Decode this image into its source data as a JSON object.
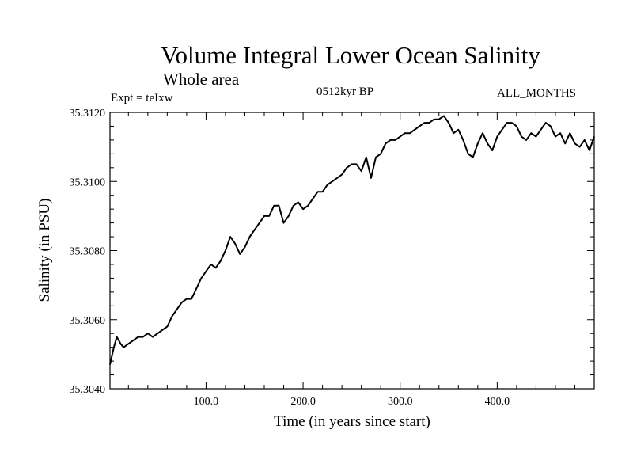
{
  "header": {
    "title": "Volume Integral Lower Ocean Salinity",
    "subtitle": "Whole area",
    "experiment": "Expt = teIxw",
    "period": "0512kyr BP",
    "months": "ALL_MONTHS"
  },
  "chart_data": {
    "type": "line",
    "title": "Volume Integral Lower Ocean Salinity",
    "xlabel": "Time (in years since start)",
    "ylabel": "Salinity (in PSU)",
    "xlim": [
      1,
      500
    ],
    "ylim": [
      35.304,
      35.312
    ],
    "x_ticks": [
      100,
      200,
      300,
      400
    ],
    "x_tick_labels": [
      "100.0",
      "200.0",
      "300.0",
      "400.0"
    ],
    "y_ticks": [
      35.304,
      35.306,
      35.308,
      35.31,
      35.312
    ],
    "y_tick_labels": [
      "35.3040",
      "35.3060",
      "35.3080",
      "35.3100",
      "35.3120"
    ],
    "grid": false,
    "series": [
      {
        "x": [
          1,
          5,
          8,
          12,
          15,
          20,
          25,
          30,
          35,
          40,
          45,
          50,
          55,
          60,
          65,
          70,
          75,
          80,
          85,
          90,
          95,
          100,
          105,
          110,
          115,
          120,
          125,
          130,
          135,
          140,
          145,
          150,
          155,
          160,
          165,
          170,
          175,
          180,
          185,
          190,
          195,
          200,
          205,
          210,
          215,
          220,
          225,
          230,
          235,
          240,
          245,
          250,
          255,
          260,
          265,
          270,
          275,
          280,
          285,
          290,
          295,
          300,
          305,
          310,
          315,
          320,
          325,
          330,
          335,
          340,
          345,
          350,
          355,
          360,
          365,
          370,
          375,
          380,
          385,
          390,
          395,
          400,
          405,
          410,
          415,
          420,
          425,
          430,
          435,
          440,
          445,
          450,
          455,
          460,
          465,
          470,
          475,
          480,
          485,
          490,
          495,
          500
        ],
        "values": [
          35.3047,
          35.3052,
          35.3055,
          35.3053,
          35.3052,
          35.3053,
          35.3054,
          35.3055,
          35.3055,
          35.3056,
          35.3055,
          35.3056,
          35.3057,
          35.3058,
          35.3061,
          35.3063,
          35.3065,
          35.3066,
          35.3066,
          35.3069,
          35.3072,
          35.3074,
          35.3076,
          35.3075,
          35.3077,
          35.308,
          35.3084,
          35.3082,
          35.3079,
          35.3081,
          35.3084,
          35.3086,
          35.3088,
          35.309,
          35.309,
          35.3093,
          35.3093,
          35.3088,
          35.309,
          35.3093,
          35.3094,
          35.3092,
          35.3093,
          35.3095,
          35.3097,
          35.3097,
          35.3099,
          35.31,
          35.3101,
          35.3102,
          35.3104,
          35.3105,
          35.3105,
          35.3103,
          35.3107,
          35.3101,
          35.3107,
          35.3108,
          35.3111,
          35.3112,
          35.3112,
          35.3113,
          35.3114,
          35.3114,
          35.3115,
          35.3116,
          35.3117,
          35.3117,
          35.3118,
          35.3118,
          35.3119,
          35.3117,
          35.3114,
          35.3115,
          35.3112,
          35.3108,
          35.3107,
          35.3111,
          35.3114,
          35.3111,
          35.3109,
          35.3113,
          35.3115,
          35.3117,
          35.3117,
          35.3116,
          35.3113,
          35.3112,
          35.3114,
          35.3113,
          35.3115,
          35.3117,
          35.3116,
          35.3113,
          35.3114,
          35.3111,
          35.3114,
          35.3111,
          35.311,
          35.3112,
          35.3109,
          35.3113
        ]
      }
    ],
    "line_color": "#000000"
  }
}
